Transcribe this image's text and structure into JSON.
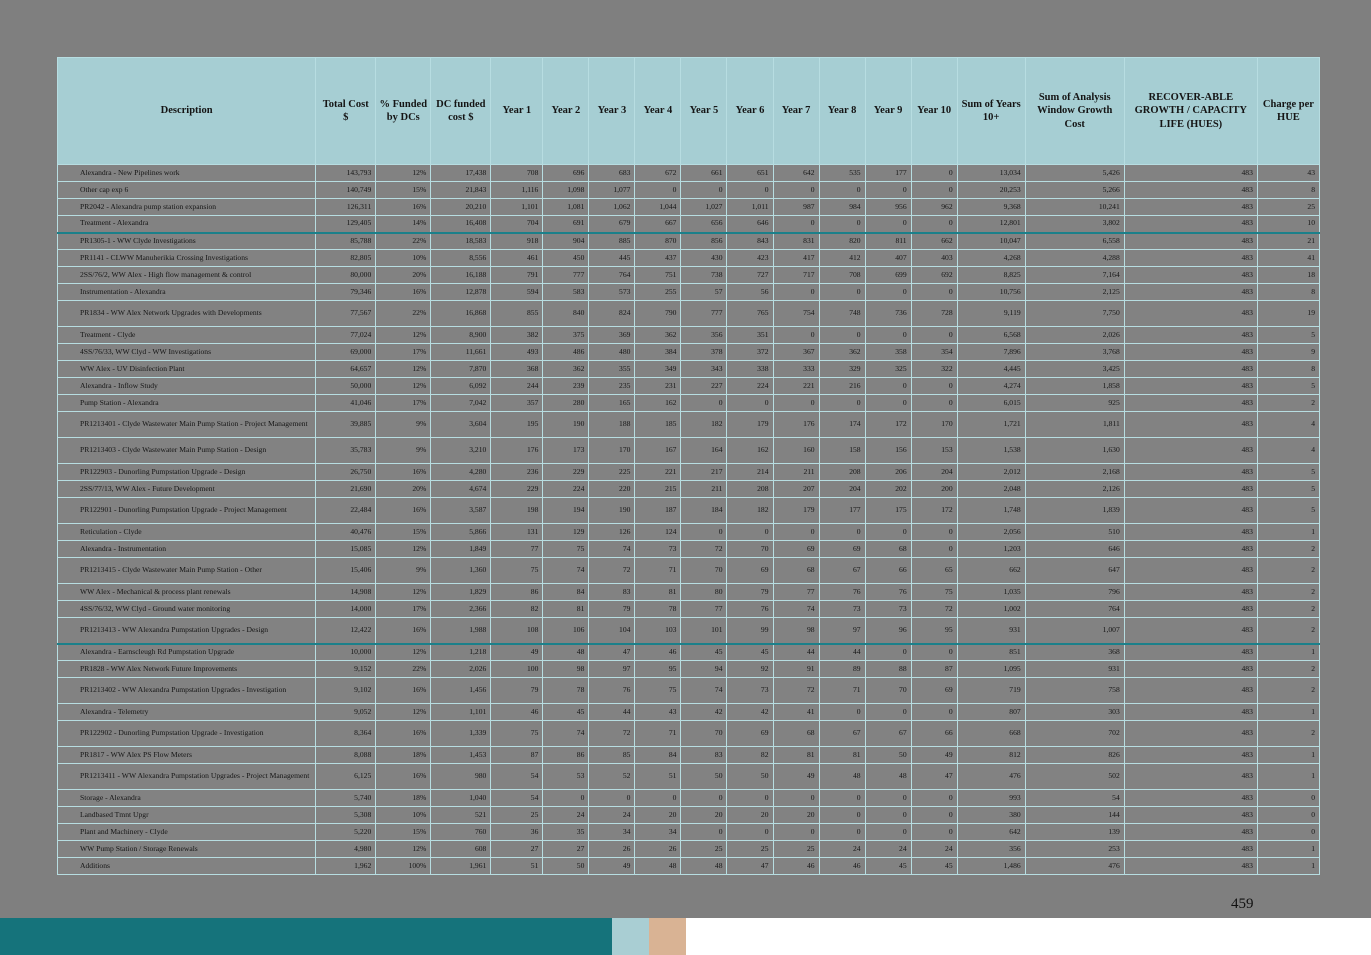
{
  "colors": {
    "page_bg": "#7f7f7f",
    "row_bg": "#828282",
    "header_bg": "#a6ced3",
    "grid_line": "#b7dde1",
    "accent_teal": "#1b808a",
    "bar_teal": "#15737b",
    "bar_blue": "#a9ced3",
    "bar_tan": "#d9b394"
  },
  "page": {
    "number": "459"
  },
  "table": {
    "headers": [
      "Description",
      "Total Cost $",
      "% Funded by DCs",
      "DC funded cost $",
      "Year 1",
      "Year 2",
      "Year 3",
      "Year 4",
      "Year 5",
      "Year 6",
      "Year 7",
      "Year 8",
      "Year 9",
      "Year 10",
      "Sum of Years 10+",
      "Sum of Analysis Window Growth Cost",
      "RECOVER-ABLE GROWTH / CAPACITY LIFE (HUES)",
      "Charge per HUE"
    ],
    "rows": [
      {
        "description": "Alexandra - New Pipelines work",
        "tall": false,
        "accent": false,
        "values": [
          "143,793",
          "12%",
          "17,438",
          "708",
          "696",
          "683",
          "672",
          "661",
          "651",
          "642",
          "535",
          "177",
          "0",
          "13,034",
          "5,426",
          "483",
          "43"
        ]
      },
      {
        "description": "Other cap exp 6",
        "tall": false,
        "accent": false,
        "values": [
          "140,749",
          "15%",
          "21,843",
          "1,116",
          "1,098",
          "1,077",
          "0",
          "0",
          "0",
          "0",
          "0",
          "0",
          "0",
          "20,253",
          "5,266",
          "483",
          "8"
        ]
      },
      {
        "description": "PR2042 - Alexandra pump station expansion",
        "tall": false,
        "accent": false,
        "values": [
          "126,311",
          "16%",
          "20,210",
          "1,101",
          "1,081",
          "1,062",
          "1,044",
          "1,027",
          "1,011",
          "987",
          "984",
          "956",
          "962",
          "9,368",
          "10,241",
          "483",
          "25"
        ]
      },
      {
        "description": "Treatment - Alexandra",
        "tall": false,
        "accent": true,
        "values": [
          "129,405",
          "14%",
          "16,408",
          "704",
          "691",
          "679",
          "667",
          "656",
          "646",
          "0",
          "0",
          "0",
          "0",
          "12,801",
          "3,802",
          "483",
          "10"
        ]
      },
      {
        "description": "PR1305-1 - WW Clyde Investigations",
        "tall": false,
        "accent": false,
        "values": [
          "85,788",
          "22%",
          "18,583",
          "918",
          "904",
          "885",
          "870",
          "856",
          "843",
          "831",
          "820",
          "811",
          "662",
          "10,047",
          "6,558",
          "483",
          "21"
        ]
      },
      {
        "description": "PR1141 - CLWW Manuherikia Crossing Investigations",
        "tall": false,
        "accent": false,
        "values": [
          "82,805",
          "10%",
          "8,556",
          "461",
          "450",
          "445",
          "437",
          "430",
          "423",
          "417",
          "412",
          "407",
          "403",
          "4,268",
          "4,288",
          "483",
          "41"
        ]
      },
      {
        "description": "2SS/76/2, WW Alex - High flow management & control",
        "tall": false,
        "accent": false,
        "values": [
          "80,000",
          "20%",
          "16,188",
          "791",
          "777",
          "764",
          "751",
          "738",
          "727",
          "717",
          "708",
          "699",
          "692",
          "8,825",
          "7,164",
          "483",
          "18"
        ]
      },
      {
        "description": "Instrumentation - Alexandra",
        "tall": false,
        "accent": false,
        "values": [
          "79,346",
          "16%",
          "12,878",
          "594",
          "583",
          "573",
          "255",
          "57",
          "56",
          "0",
          "0",
          "0",
          "0",
          "10,756",
          "2,125",
          "483",
          "8"
        ]
      },
      {
        "description": "PR1834 - WW Alex Network Upgrades with Developments",
        "tall": true,
        "accent": false,
        "values": [
          "77,567",
          "22%",
          "16,868",
          "855",
          "840",
          "824",
          "790",
          "777",
          "765",
          "754",
          "748",
          "736",
          "728",
          "9,119",
          "7,750",
          "483",
          "19"
        ]
      },
      {
        "description": "Treatment - Clyde",
        "tall": false,
        "accent": false,
        "values": [
          "77,024",
          "12%",
          "8,900",
          "382",
          "375",
          "369",
          "362",
          "356",
          "351",
          "0",
          "0",
          "0",
          "0",
          "6,568",
          "2,026",
          "483",
          "5"
        ]
      },
      {
        "description": "4SS/76/33, WW Clyd - WW Investigations",
        "tall": false,
        "accent": false,
        "values": [
          "69,000",
          "17%",
          "11,661",
          "493",
          "486",
          "480",
          "384",
          "378",
          "372",
          "367",
          "362",
          "358",
          "354",
          "7,896",
          "3,768",
          "483",
          "9"
        ]
      },
      {
        "description": "WW Alex - UV Disinfection Plant",
        "tall": false,
        "accent": false,
        "values": [
          "64,657",
          "12%",
          "7,870",
          "368",
          "362",
          "355",
          "349",
          "343",
          "338",
          "333",
          "329",
          "325",
          "322",
          "4,445",
          "3,425",
          "483",
          "8"
        ]
      },
      {
        "description": "Alexandra - Inflow Study",
        "tall": false,
        "accent": false,
        "values": [
          "50,000",
          "12%",
          "6,092",
          "244",
          "239",
          "235",
          "231",
          "227",
          "224",
          "221",
          "216",
          "0",
          "0",
          "4,274",
          "1,858",
          "483",
          "5"
        ]
      },
      {
        "description": "Pump Station - Alexandra",
        "tall": false,
        "accent": false,
        "values": [
          "41,046",
          "17%",
          "7,042",
          "357",
          "280",
          "165",
          "162",
          "0",
          "0",
          "0",
          "0",
          "0",
          "0",
          "6,015",
          "925",
          "483",
          "2"
        ]
      },
      {
        "description": "PR1213401 - Clyde Wastewater Main Pump Station - Project Management",
        "tall": true,
        "accent": false,
        "values": [
          "39,885",
          "9%",
          "3,604",
          "195",
          "190",
          "188",
          "185",
          "182",
          "179",
          "176",
          "174",
          "172",
          "170",
          "1,721",
          "1,811",
          "483",
          "4"
        ]
      },
      {
        "description": "PR1213403 - Clyde Wastewater Main Pump Station - Design",
        "tall": true,
        "accent": false,
        "values": [
          "35,783",
          "9%",
          "3,210",
          "176",
          "173",
          "170",
          "167",
          "164",
          "162",
          "160",
          "158",
          "156",
          "153",
          "1,538",
          "1,630",
          "483",
          "4"
        ]
      },
      {
        "description": "PR122903 - Dunorling Pumpstation Upgrade - Design",
        "tall": false,
        "accent": false,
        "values": [
          "26,750",
          "16%",
          "4,280",
          "236",
          "229",
          "225",
          "221",
          "217",
          "214",
          "211",
          "208",
          "206",
          "204",
          "2,012",
          "2,168",
          "483",
          "5"
        ]
      },
      {
        "description": "2SS/77/13, WW Alex - Future Development",
        "tall": false,
        "accent": false,
        "values": [
          "21,690",
          "20%",
          "4,674",
          "229",
          "224",
          "220",
          "215",
          "211",
          "208",
          "207",
          "204",
          "202",
          "200",
          "2,048",
          "2,126",
          "483",
          "5"
        ]
      },
      {
        "description": "PR122901 - Dunorling Pumpstation Upgrade - Project Management",
        "tall": true,
        "accent": false,
        "values": [
          "22,484",
          "16%",
          "3,587",
          "198",
          "194",
          "190",
          "187",
          "184",
          "182",
          "179",
          "177",
          "175",
          "172",
          "1,748",
          "1,839",
          "483",
          "5"
        ]
      },
      {
        "description": "Reticulation - Clyde",
        "tall": false,
        "accent": false,
        "values": [
          "40,476",
          "15%",
          "5,866",
          "131",
          "129",
          "126",
          "124",
          "0",
          "0",
          "0",
          "0",
          "0",
          "0",
          "2,056",
          "510",
          "483",
          "1"
        ]
      },
      {
        "description": "Alexandra - Instrumentation",
        "tall": false,
        "accent": false,
        "values": [
          "15,085",
          "12%",
          "1,849",
          "77",
          "75",
          "74",
          "73",
          "72",
          "70",
          "69",
          "69",
          "68",
          "0",
          "1,203",
          "646",
          "483",
          "2"
        ]
      },
      {
        "description": "PR1213415 - Clyde Wastewater Main Pump Station - Other",
        "tall": true,
        "accent": false,
        "values": [
          "15,406",
          "9%",
          "1,360",
          "75",
          "74",
          "72",
          "71",
          "70",
          "69",
          "68",
          "67",
          "66",
          "65",
          "662",
          "647",
          "483",
          "2"
        ]
      },
      {
        "description": "WW Alex - Mechanical & process plant renewals",
        "tall": false,
        "accent": false,
        "values": [
          "14,908",
          "12%",
          "1,829",
          "86",
          "84",
          "83",
          "81",
          "80",
          "79",
          "77",
          "76",
          "76",
          "75",
          "1,035",
          "796",
          "483",
          "2"
        ]
      },
      {
        "description": "4SS/76/32, WW Clyd - Ground water monitoring",
        "tall": false,
        "accent": false,
        "values": [
          "14,000",
          "17%",
          "2,366",
          "82",
          "81",
          "79",
          "78",
          "77",
          "76",
          "74",
          "73",
          "73",
          "72",
          "1,002",
          "764",
          "483",
          "2"
        ]
      },
      {
        "description": "PR1213413 - WW Alexandra Pumpstation Upgrades - Design",
        "tall": true,
        "accent": true,
        "values": [
          "12,422",
          "16%",
          "1,988",
          "108",
          "106",
          "104",
          "103",
          "101",
          "99",
          "98",
          "97",
          "96",
          "95",
          "931",
          "1,007",
          "483",
          "2"
        ]
      },
      {
        "description": "Alexandra - Earnscleugh Rd Pumpstation Upgrade",
        "tall": false,
        "accent": false,
        "values": [
          "10,000",
          "12%",
          "1,218",
          "49",
          "48",
          "47",
          "46",
          "45",
          "45",
          "44",
          "44",
          "0",
          "0",
          "851",
          "368",
          "483",
          "1"
        ]
      },
      {
        "description": "PR1828 - WW Alex Network Future Improvements",
        "tall": false,
        "accent": false,
        "values": [
          "9,152",
          "22%",
          "2,026",
          "100",
          "98",
          "97",
          "95",
          "94",
          "92",
          "91",
          "89",
          "88",
          "87",
          "1,095",
          "931",
          "483",
          "2"
        ]
      },
      {
        "description": "PR1213402 - WW Alexandra Pumpstation Upgrades - Investigation",
        "tall": true,
        "accent": false,
        "values": [
          "9,102",
          "16%",
          "1,456",
          "79",
          "78",
          "76",
          "75",
          "74",
          "73",
          "72",
          "71",
          "70",
          "69",
          "719",
          "758",
          "483",
          "2"
        ]
      },
      {
        "description": "Alexandra - Telemetry",
        "tall": false,
        "accent": false,
        "values": [
          "9,052",
          "12%",
          "1,101",
          "46",
          "45",
          "44",
          "43",
          "42",
          "42",
          "41",
          "0",
          "0",
          "0",
          "807",
          "303",
          "483",
          "1"
        ]
      },
      {
        "description": "PR122902 - Dunorling Pumpstation Upgrade - Investigation",
        "tall": true,
        "accent": false,
        "values": [
          "8,364",
          "16%",
          "1,339",
          "75",
          "74",
          "72",
          "71",
          "70",
          "69",
          "68",
          "67",
          "67",
          "66",
          "668",
          "702",
          "483",
          "2"
        ]
      },
      {
        "description": "PR1817 - WW Alex PS Flow Meters",
        "tall": false,
        "accent": false,
        "values": [
          "8,088",
          "18%",
          "1,453",
          "87",
          "86",
          "85",
          "84",
          "83",
          "82",
          "81",
          "81",
          "50",
          "49",
          "812",
          "826",
          "483",
          "1"
        ]
      },
      {
        "description": "PR1213411 - WW Alexandra Pumpstation Upgrades - Project Management",
        "tall": true,
        "accent": false,
        "values": [
          "6,125",
          "16%",
          "980",
          "54",
          "53",
          "52",
          "51",
          "50",
          "50",
          "49",
          "48",
          "48",
          "47",
          "476",
          "502",
          "483",
          "1"
        ]
      },
      {
        "description": "Storage - Alexandra",
        "tall": false,
        "accent": false,
        "values": [
          "5,740",
          "18%",
          "1,040",
          "54",
          "0",
          "0",
          "0",
          "0",
          "0",
          "0",
          "0",
          "0",
          "0",
          "993",
          "54",
          "483",
          "0"
        ]
      },
      {
        "description": "Landbased Tmnt Upgr",
        "tall": false,
        "accent": false,
        "values": [
          "5,308",
          "10%",
          "521",
          "25",
          "24",
          "24",
          "20",
          "20",
          "20",
          "20",
          "0",
          "0",
          "0",
          "380",
          "144",
          "483",
          "0"
        ]
      },
      {
        "description": "Plant and Machinery - Clyde",
        "tall": false,
        "accent": false,
        "values": [
          "5,220",
          "15%",
          "760",
          "36",
          "35",
          "34",
          "34",
          "0",
          "0",
          "0",
          "0",
          "0",
          "0",
          "642",
          "139",
          "483",
          "0"
        ]
      },
      {
        "description": "WW Pump Station / Storage Renewals",
        "tall": false,
        "accent": false,
        "values": [
          "4,980",
          "12%",
          "608",
          "27",
          "27",
          "26",
          "26",
          "25",
          "25",
          "25",
          "24",
          "24",
          "24",
          "356",
          "253",
          "483",
          "1"
        ]
      },
      {
        "description": "Additions",
        "tall": false,
        "accent": false,
        "values": [
          "1,962",
          "100%",
          "1,961",
          "51",
          "50",
          "49",
          "48",
          "48",
          "47",
          "46",
          "46",
          "45",
          "45",
          "1,486",
          "476",
          "483",
          "1"
        ]
      }
    ]
  }
}
